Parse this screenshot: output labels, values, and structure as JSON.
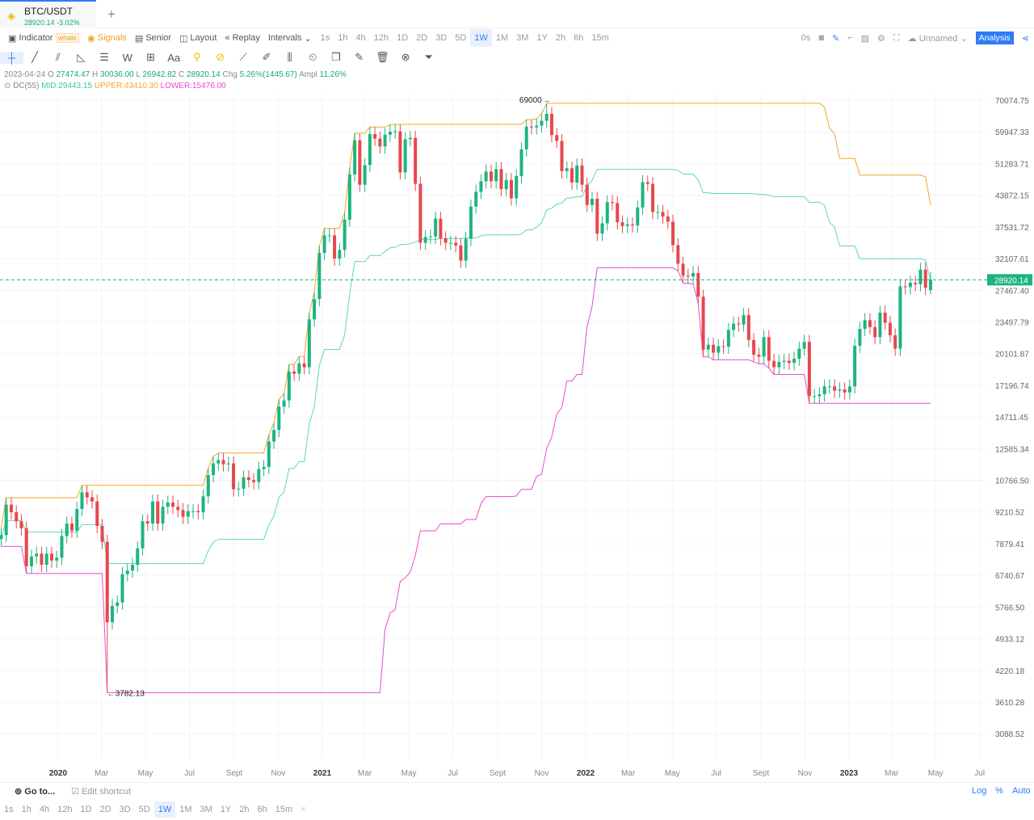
{
  "tab": {
    "symbol": "BTC/USDT",
    "price": "28920.14",
    "change": "-3.02%",
    "add": "+"
  },
  "toolbar": {
    "indicator": "Indicator",
    "whale": "whale",
    "signals": "Signals",
    "senior": "Senior",
    "layout": "Layout",
    "replay": "Replay",
    "intervals": "Intervals",
    "interval_list": [
      "1s",
      "1h",
      "4h",
      "12h",
      "1D",
      "2D",
      "3D",
      "5D",
      "1W",
      "1M",
      "3M",
      "1Y",
      "2h",
      "6h",
      "15m"
    ],
    "selected_interval": "1W",
    "right": {
      "countdown": "0s",
      "layout_name": "Unnamed",
      "analysis": "Analysis"
    }
  },
  "drawing_tools": [
    "crosshair-icon",
    "trend-line-icon",
    "fib-icon",
    "triangle-icon",
    "lines-icon",
    "wave-icon",
    "measure-icon",
    "text-icon",
    "magnet-icon",
    "lock-icon",
    "ruler-icon",
    "brush-icon",
    "compare-icon",
    "timer-icon",
    "copy-icon",
    "note-icon",
    "trash-icon",
    "hide-icon",
    "filter-icon"
  ],
  "legend": {
    "date": "2023-04-24",
    "o_label": "O",
    "o": "27474.47",
    "h_label": "H",
    "h": "30036.00",
    "l_label": "L",
    "l": "26942.82",
    "c_label": "C",
    "c": "28920.14",
    "chg_label": "Chg",
    "chg": "5.26%(1445.67)",
    "ampl_label": "Ampl",
    "ampl": "11.26%",
    "indicator": "DC(55)",
    "mid": "MID:29443.15",
    "upper": "UPPER:43410.30",
    "lower": "LOWER:15476.00"
  },
  "chart_data": {
    "type": "candlestick",
    "interval": "1W",
    "scale": "log",
    "grid": true,
    "colors": {
      "up": "#1db47f",
      "down": "#e8474e",
      "upper": "#f5a623",
      "mid": "#5ad8b8",
      "lower": "#e94bd0",
      "last": "#1db47f"
    },
    "start_week": "2019-10-14",
    "closes": [
      8220,
      9550,
      9200,
      8800,
      8500,
      7050,
      7400,
      7500,
      7100,
      7500,
      7250,
      7350,
      8180,
      8700,
      8400,
      9350,
      10150,
      9900,
      9700,
      8600,
      7950,
      5350,
      5800,
      5900,
      6780,
      6900,
      7100,
      7700,
      8800,
      8700,
      9700,
      8700,
      9450,
      9650,
      9450,
      9300,
      9000,
      9250,
      9250,
      9200,
      9950,
      11050,
      11700,
      11900,
      11650,
      11700,
      10300,
      10330,
      10920,
      10780,
      10670,
      11380,
      11500,
      13030,
      13800,
      15480,
      15960,
      18400,
      18200,
      19150,
      18800,
      23800,
      26300,
      33000,
      36000,
      36000,
      32100,
      33500,
      38900,
      48600,
      57500,
      46200,
      50900,
      59300,
      58000,
      55800,
      59100,
      60000,
      60100,
      49100,
      57800,
      58200,
      46400,
      34700,
      35700,
      35800,
      39100,
      35500,
      34700,
      34700,
      34250,
      31800,
      35400,
      41500,
      44600,
      47000,
      49300,
      47000,
      49900,
      45200,
      47300,
      43200,
      48200,
      55000,
      61500,
      61300,
      61800,
      63300,
      65500,
      59000,
      57300,
      49400,
      50100,
      46700,
      50800,
      46200,
      41800,
      43100,
      36300,
      38200,
      42400,
      42200,
      38400,
      37700,
      38000,
      37800,
      41300,
      46800,
      46400,
      40400,
      40400,
      39500,
      38500,
      34300,
      31300,
      29500,
      29400,
      29900,
      26600,
      20500,
      21000,
      20200,
      20850,
      20800,
      22600,
      23300,
      23200,
      24300,
      21500,
      20000,
      19800,
      21800,
      19400,
      18800,
      19300,
      19400,
      19200,
      19600,
      20600,
      21300,
      16300,
      16300,
      16450,
      17100,
      17100,
      16750,
      16850,
      16600,
      17100,
      20900,
      22700,
      23700,
      22900,
      21800,
      24600,
      23400,
      22000,
      20600,
      28000,
      27900,
      28500,
      28300,
      30400,
      27800,
      28920.14
    ],
    "last_candle": {
      "date": "2023-04-24",
      "open": 27474.47,
      "high": 30036.0,
      "low": 26942.82,
      "close": 28920.14
    },
    "annotations": [
      {
        "date": "2021-11-08",
        "type": "high",
        "value": 69000,
        "label": "69000"
      },
      {
        "date": "2020-03-09",
        "type": "low",
        "value": 3782.13,
        "label": "3782.13"
      }
    ],
    "indicator": {
      "name": "DC",
      "period": 55,
      "lines": [
        "upper",
        "mid",
        "lower"
      ]
    },
    "last_price_label": "28920.14",
    "y_ticks": [
      "70074.75",
      "59947.33",
      "51283.71",
      "43872.15",
      "37531.72",
      "32107.61",
      "27467.40",
      "23497.79",
      "20101.87",
      "17196.74",
      "14711.45",
      "12585.34",
      "10766.50",
      "9210.52",
      "7879.41",
      "6740.67",
      "5766.50",
      "4933.12",
      "4220.18",
      "3610.28",
      "3088.52"
    ],
    "x_ticks": [
      {
        "date": "2020-01-01",
        "label": "2020",
        "major": true
      },
      {
        "date": "2020-03-01",
        "label": "Mar"
      },
      {
        "date": "2020-05-01",
        "label": "May"
      },
      {
        "date": "2020-07-01",
        "label": "Jul"
      },
      {
        "date": "2020-09-01",
        "label": "Sept"
      },
      {
        "date": "2020-11-01",
        "label": "Nov"
      },
      {
        "date": "2021-01-01",
        "label": "2021",
        "major": true
      },
      {
        "date": "2021-03-01",
        "label": "Mar"
      },
      {
        "date": "2021-05-01",
        "label": "May"
      },
      {
        "date": "2021-07-01",
        "label": "Jul"
      },
      {
        "date": "2021-09-01",
        "label": "Sept"
      },
      {
        "date": "2021-11-01",
        "label": "Nov"
      },
      {
        "date": "2022-01-01",
        "label": "2022",
        "major": true
      },
      {
        "date": "2022-03-01",
        "label": "Mar"
      },
      {
        "date": "2022-05-01",
        "label": "May"
      },
      {
        "date": "2022-07-01",
        "label": "Jul"
      },
      {
        "date": "2022-09-01",
        "label": "Sept"
      },
      {
        "date": "2022-11-01",
        "label": "Nov"
      },
      {
        "date": "2023-01-01",
        "label": "2023",
        "major": true
      },
      {
        "date": "2023-03-01",
        "label": "Mar"
      },
      {
        "date": "2023-05-01",
        "label": "May"
      },
      {
        "date": "2023-07-01",
        "label": "Jul"
      }
    ]
  },
  "bottom": {
    "goto": "Go to...",
    "edit_shortcut": "Edit shortcut",
    "log": "Log",
    "percent": "%",
    "auto": "Auto",
    "close": "×"
  }
}
